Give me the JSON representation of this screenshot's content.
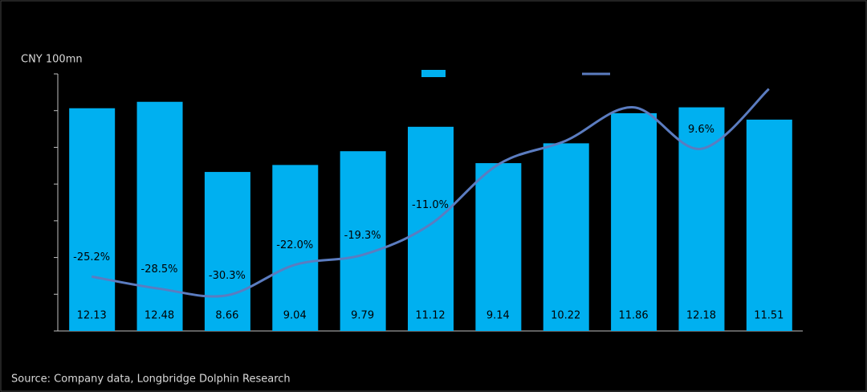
{
  "chart_data": {
    "type": "bar_line",
    "y_label": "CNY 100mn",
    "source": "Source: Company data, Longbridge Dolphin Research",
    "categories": [
      null,
      null,
      null,
      null,
      null,
      null,
      null,
      null,
      null,
      null,
      null
    ],
    "ylim": [
      0,
      14
    ],
    "yticks": [
      0,
      2,
      4,
      6,
      8,
      10,
      12,
      14
    ],
    "y2lim": [
      -40,
      30
    ],
    "series": [
      {
        "type": "bar",
        "color": "#00b0f0",
        "values": [
          12.13,
          12.48,
          8.66,
          9.04,
          9.79,
          11.12,
          9.14,
          10.22,
          11.86,
          12.18,
          11.51
        ]
      },
      {
        "type": "line",
        "axis": "y2",
        "color": "#5b7cc0",
        "values": [
          -25.2,
          -28.5,
          -30.3,
          -22.0,
          -19.3,
          -11.0,
          5.3,
          11.8,
          20.9,
          9.6,
          25.9
        ],
        "value_labels": [
          "-25.2%",
          "-28.5%",
          "-30.3%",
          "-22.0%",
          "-19.3%",
          "-11.0%",
          null,
          null,
          null,
          "9.6%",
          null
        ]
      }
    ]
  }
}
